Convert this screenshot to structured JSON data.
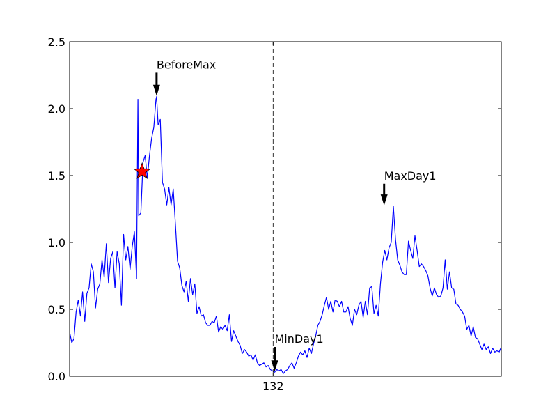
{
  "chart_data": {
    "type": "line",
    "title": "",
    "xlabel": "",
    "ylabel": "",
    "ylim": [
      0.0,
      2.5
    ],
    "yticks": [
      "0.0",
      "0.5",
      "1.0",
      "1.5",
      "2.0",
      "2.5"
    ],
    "xticks": [
      {
        "x": 132,
        "label": "132"
      }
    ],
    "xlim": [
      0,
      280
    ],
    "grid": false,
    "series": [
      {
        "color": "#0000ff",
        "points": [
          [
            0.0,
            0.33
          ],
          [
            1.4,
            0.25
          ],
          [
            2.8,
            0.28
          ],
          [
            4.2,
            0.48
          ],
          [
            5.6,
            0.57
          ],
          [
            7.0,
            0.45
          ],
          [
            8.4,
            0.63
          ],
          [
            9.8,
            0.41
          ],
          [
            11.2,
            0.62
          ],
          [
            12.6,
            0.66
          ],
          [
            14.0,
            0.84
          ],
          [
            15.4,
            0.78
          ],
          [
            16.8,
            0.51
          ],
          [
            18.2,
            0.65
          ],
          [
            19.6,
            0.69
          ],
          [
            21.0,
            0.87
          ],
          [
            22.4,
            0.74
          ],
          [
            23.8,
            0.99
          ],
          [
            25.2,
            0.7
          ],
          [
            26.6,
            0.88
          ],
          [
            28.0,
            0.93
          ],
          [
            29.4,
            0.66
          ],
          [
            30.8,
            0.93
          ],
          [
            32.2,
            0.84
          ],
          [
            33.6,
            0.53
          ],
          [
            35.0,
            1.06
          ],
          [
            36.4,
            0.87
          ],
          [
            37.8,
            0.97
          ],
          [
            39.2,
            0.8
          ],
          [
            40.6,
            0.97
          ],
          [
            42.0,
            1.08
          ],
          [
            43.4,
            0.73
          ],
          [
            44.8,
            1.2
          ],
          [
            46.2,
            1.22
          ],
          [
            47.6,
            1.6
          ],
          [
            49.0,
            1.65
          ],
          [
            50.4,
            1.48
          ],
          [
            51.8,
            1.65
          ],
          [
            53.2,
            1.78
          ],
          [
            54.6,
            1.86
          ],
          [
            56.0,
            2.07
          ],
          [
            57.4,
            1.88
          ],
          [
            58.8,
            1.92
          ],
          [
            60.2,
            1.45
          ],
          [
            61.6,
            1.4
          ],
          [
            63.0,
            1.28
          ],
          [
            64.4,
            1.41
          ],
          [
            65.8,
            1.28
          ],
          [
            67.2,
            1.4
          ],
          [
            68.6,
            1.14
          ],
          [
            70.0,
            0.86
          ],
          [
            71.4,
            0.81
          ],
          [
            72.8,
            0.68
          ],
          [
            74.2,
            0.63
          ],
          [
            75.6,
            0.71
          ],
          [
            77.0,
            0.56
          ],
          [
            78.4,
            0.73
          ],
          [
            79.8,
            0.61
          ],
          [
            81.2,
            0.69
          ],
          [
            82.6,
            0.47
          ],
          [
            84.0,
            0.52
          ],
          [
            85.4,
            0.45
          ],
          [
            86.8,
            0.46
          ],
          [
            88.2,
            0.4
          ],
          [
            89.6,
            0.38
          ],
          [
            91.0,
            0.38
          ],
          [
            92.4,
            0.41
          ],
          [
            93.8,
            0.4
          ],
          [
            95.2,
            0.45
          ],
          [
            96.6,
            0.33
          ],
          [
            98.0,
            0.37
          ],
          [
            99.4,
            0.35
          ],
          [
            100.8,
            0.38
          ],
          [
            102.2,
            0.34
          ],
          [
            103.6,
            0.46
          ],
          [
            105.0,
            0.26
          ],
          [
            106.4,
            0.34
          ],
          [
            107.8,
            0.3
          ],
          [
            109.2,
            0.26
          ],
          [
            110.6,
            0.23
          ],
          [
            112.0,
            0.17
          ],
          [
            113.4,
            0.2
          ],
          [
            114.8,
            0.18
          ],
          [
            116.2,
            0.15
          ],
          [
            117.6,
            0.16
          ],
          [
            119.0,
            0.12
          ],
          [
            120.4,
            0.16
          ],
          [
            121.8,
            0.1
          ],
          [
            123.2,
            0.08
          ],
          [
            124.6,
            0.09
          ],
          [
            126.0,
            0.1
          ],
          [
            127.4,
            0.07
          ],
          [
            128.8,
            0.08
          ],
          [
            130.2,
            0.05
          ],
          [
            131.6,
            0.04
          ],
          [
            133.0,
            0.03
          ],
          [
            134.4,
            0.05
          ],
          [
            135.8,
            0.04
          ],
          [
            137.2,
            0.05
          ],
          [
            138.6,
            0.02
          ],
          [
            140.0,
            0.04
          ],
          [
            141.4,
            0.05
          ],
          [
            142.8,
            0.08
          ],
          [
            144.2,
            0.1
          ],
          [
            145.6,
            0.06
          ],
          [
            147.0,
            0.1
          ],
          [
            148.4,
            0.15
          ],
          [
            149.8,
            0.18
          ],
          [
            151.2,
            0.16
          ],
          [
            152.6,
            0.19
          ],
          [
            154.0,
            0.14
          ],
          [
            155.4,
            0.21
          ],
          [
            156.8,
            0.17
          ],
          [
            158.2,
            0.24
          ],
          [
            159.6,
            0.3
          ],
          [
            161.0,
            0.38
          ],
          [
            162.4,
            0.41
          ],
          [
            163.8,
            0.46
          ],
          [
            165.2,
            0.53
          ],
          [
            166.6,
            0.59
          ],
          [
            168.0,
            0.5
          ],
          [
            169.4,
            0.56
          ],
          [
            170.8,
            0.48
          ],
          [
            172.2,
            0.57
          ],
          [
            173.6,
            0.56
          ],
          [
            175.0,
            0.52
          ],
          [
            176.4,
            0.56
          ],
          [
            177.8,
            0.48
          ],
          [
            179.2,
            0.48
          ],
          [
            180.6,
            0.52
          ],
          [
            182.0,
            0.43
          ],
          [
            183.4,
            0.38
          ],
          [
            184.8,
            0.5
          ],
          [
            186.2,
            0.46
          ],
          [
            187.6,
            0.53
          ],
          [
            189.0,
            0.56
          ],
          [
            190.4,
            0.44
          ],
          [
            191.8,
            0.56
          ],
          [
            193.2,
            0.46
          ],
          [
            194.6,
            0.66
          ],
          [
            196.0,
            0.67
          ],
          [
            197.4,
            0.47
          ],
          [
            198.8,
            0.53
          ],
          [
            200.2,
            0.45
          ],
          [
            201.6,
            0.69
          ],
          [
            203.0,
            0.85
          ],
          [
            204.4,
            0.94
          ],
          [
            205.8,
            0.87
          ],
          [
            207.2,
            0.96
          ],
          [
            208.6,
            1.0
          ],
          [
            210.0,
            1.27
          ],
          [
            211.4,
            1.02
          ],
          [
            212.8,
            0.87
          ],
          [
            214.2,
            0.83
          ],
          [
            215.6,
            0.78
          ],
          [
            217.0,
            0.76
          ],
          [
            218.4,
            0.76
          ],
          [
            219.8,
            1.01
          ],
          [
            221.2,
            0.94
          ],
          [
            222.6,
            0.88
          ],
          [
            224.0,
            1.05
          ],
          [
            225.4,
            0.94
          ],
          [
            226.8,
            0.82
          ],
          [
            228.2,
            0.84
          ],
          [
            229.6,
            0.82
          ],
          [
            231.0,
            0.79
          ],
          [
            232.4,
            0.75
          ],
          [
            233.8,
            0.66
          ],
          [
            235.2,
            0.6
          ],
          [
            236.6,
            0.66
          ],
          [
            238.0,
            0.61
          ],
          [
            239.4,
            0.59
          ],
          [
            240.8,
            0.6
          ],
          [
            242.2,
            0.66
          ],
          [
            243.6,
            0.87
          ],
          [
            245.0,
            0.65
          ],
          [
            246.4,
            0.78
          ],
          [
            247.8,
            0.66
          ],
          [
            249.2,
            0.65
          ],
          [
            250.6,
            0.54
          ],
          [
            252.0,
            0.53
          ],
          [
            253.4,
            0.5
          ],
          [
            254.8,
            0.48
          ],
          [
            256.2,
            0.45
          ],
          [
            257.6,
            0.35
          ],
          [
            259.0,
            0.38
          ],
          [
            260.4,
            0.3
          ],
          [
            261.8,
            0.37
          ],
          [
            263.2,
            0.29
          ],
          [
            264.6,
            0.28
          ],
          [
            266.0,
            0.24
          ],
          [
            267.4,
            0.2
          ],
          [
            268.8,
            0.24
          ],
          [
            270.2,
            0.2
          ],
          [
            271.6,
            0.22
          ],
          [
            273.0,
            0.17
          ],
          [
            274.4,
            0.21
          ],
          [
            275.8,
            0.18
          ],
          [
            277.2,
            0.19
          ],
          [
            278.6,
            0.18
          ],
          [
            280.0,
            0.22
          ]
        ]
      }
    ],
    "spike_points": [
      {
        "x": 44.3,
        "y": 2.07
      },
      {
        "x": 56.4,
        "y": 2.09
      }
    ],
    "vline": {
      "x": 132,
      "style": "dashed",
      "color": "#000000"
    },
    "star_marker": {
      "x": 47.0,
      "y": 1.53,
      "color": "#ff0000"
    },
    "annotations": [
      {
        "label": "BeforeMax",
        "x": 56.4,
        "y": 2.09,
        "text_y": 2.3
      },
      {
        "label": "MinDay1",
        "x": 133.0,
        "y": 0.03,
        "text_y": 0.25
      },
      {
        "label": "MaxDay1",
        "x": 204.0,
        "y": 1.27,
        "text_y": 1.47
      }
    ]
  }
}
